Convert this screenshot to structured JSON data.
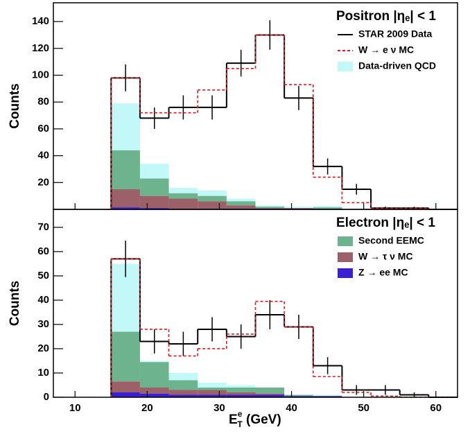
{
  "chart_data": [
    {
      "type": "histogram",
      "title": "Positron |ηₑ| < 1",
      "ylabel": "Counts",
      "bins": [
        15,
        19,
        23,
        27,
        31,
        35,
        39,
        43,
        47,
        51,
        55,
        59,
        63
      ],
      "xlim": [
        7,
        63
      ],
      "xticks": [
        10,
        20,
        30,
        40,
        50,
        60
      ],
      "xtick_labels": false,
      "ylim": [
        0,
        154
      ],
      "yticks": [
        20,
        40,
        60,
        80,
        100,
        120,
        140
      ],
      "legend": "upper right",
      "series": [
        {
          "name": "STAR 2009 Data",
          "style": "step",
          "color": "#000000",
          "values": [
            98,
            68,
            76,
            76,
            109,
            130,
            83,
            32,
            15,
            1,
            1,
            0
          ],
          "errors": [
            10,
            8,
            9,
            9,
            10,
            11,
            9,
            6,
            4,
            1,
            1,
            0
          ]
        },
        {
          "name": "W → e ν MC",
          "style": "dashed",
          "color": "#e8141c",
          "values": [
            98,
            72,
            72,
            89,
            105,
            130,
            93,
            24,
            5,
            1,
            1,
            0
          ]
        },
        {
          "name": "Data-driven QCD",
          "style": "stack",
          "color": "#c2f8f8",
          "values": [
            35,
            11,
            4,
            4,
            2,
            1,
            1,
            1,
            0,
            0,
            0,
            0
          ]
        },
        {
          "style": "stack",
          "color": "#6db48e",
          "values": [
            29,
            13,
            4,
            4,
            3,
            1,
            0,
            1,
            0,
            0,
            0,
            0
          ]
        },
        {
          "style": "stack",
          "color": "#9c6068",
          "values": [
            13.5,
            9,
            7.5,
            5.5,
            2.5,
            0.5,
            0.5,
            0,
            0,
            0,
            0,
            0
          ]
        },
        {
          "style": "stack",
          "color": "#3a1fd4",
          "values": [
            1.5,
            1,
            0.5,
            0.5,
            0.5,
            0.5,
            0.5,
            0.5,
            0,
            0,
            0,
            0
          ]
        }
      ]
    },
    {
      "type": "histogram",
      "title": "Electron |ηₑ| < 1",
      "ylabel": "Counts",
      "xlabel": {
        "base": "E",
        "sup": "e",
        "sub": "T",
        "unit": " (GeV)"
      },
      "bins": [
        15,
        19,
        23,
        27,
        31,
        35,
        39,
        43,
        47,
        51,
        55,
        59,
        63
      ],
      "xlim": [
        7,
        63
      ],
      "xticks": [
        10,
        20,
        30,
        40,
        50,
        60
      ],
      "xtick_labels": true,
      "ylim": [
        0,
        77.4
      ],
      "yticks": [
        0,
        10,
        20,
        30,
        40,
        50,
        60,
        70
      ],
      "legend": "upper right",
      "series": [
        {
          "style": "step",
          "color": "#000000",
          "values": [
            57,
            23,
            22,
            28,
            25,
            34,
            29,
            13,
            3,
            3,
            1,
            0
          ],
          "errors": [
            7.5,
            5,
            5,
            5,
            5,
            6,
            5,
            3.5,
            2,
            2,
            1,
            0
          ]
        },
        {
          "style": "dashed",
          "color": "#e8141c",
          "values": [
            57,
            28,
            17,
            20,
            26,
            39.5,
            29,
            8.5,
            2,
            0.5,
            0,
            0
          ]
        },
        {
          "style": "stack",
          "color": "#c2f8f8",
          "values": [
            28,
            0.5,
            3,
            2,
            1,
            0,
            0,
            0.5,
            0,
            0,
            0,
            0
          ]
        },
        {
          "name": "Second EEMC",
          "style": "stack",
          "color": "#6db48e",
          "values": [
            20.5,
            10.5,
            4,
            1,
            2,
            2.5,
            0.5,
            0,
            0,
            0,
            0,
            0
          ]
        },
        {
          "name": "W → τ ν MC",
          "style": "stack",
          "color": "#9c6068",
          "values": [
            4.5,
            2.5,
            2,
            2,
            1,
            0.5,
            0,
            0,
            0,
            0,
            0,
            0
          ]
        },
        {
          "name": "Z → ee MC",
          "style": "stack",
          "color": "#3a1fd4",
          "values": [
            2,
            1.5,
            1,
            1,
            1,
            1,
            0.5,
            0.5,
            0,
            0,
            0,
            0
          ]
        }
      ]
    }
  ]
}
